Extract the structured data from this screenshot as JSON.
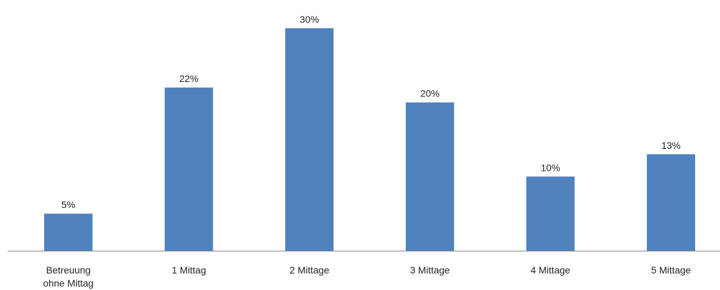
{
  "chart_data": {
    "type": "bar",
    "categories": [
      [
        "Betreuung",
        "ohne Mittag"
      ],
      [
        "1 Mittag"
      ],
      [
        "2 Mittage"
      ],
      [
        "3 Mittage"
      ],
      [
        "4 Mittage"
      ],
      [
        "5 Mittage"
      ]
    ],
    "values": [
      5,
      22,
      30,
      20,
      10,
      13
    ],
    "value_labels": [
      "5%",
      "22%",
      "30%",
      "20%",
      "10%",
      "13%"
    ],
    "value_unit": "%",
    "title": "",
    "xlabel": "",
    "ylabel": "",
    "ylim": [
      0,
      30
    ],
    "grid": false,
    "legend": "none",
    "bar_color": "#4f81bd",
    "axis_color": "#868686"
  }
}
